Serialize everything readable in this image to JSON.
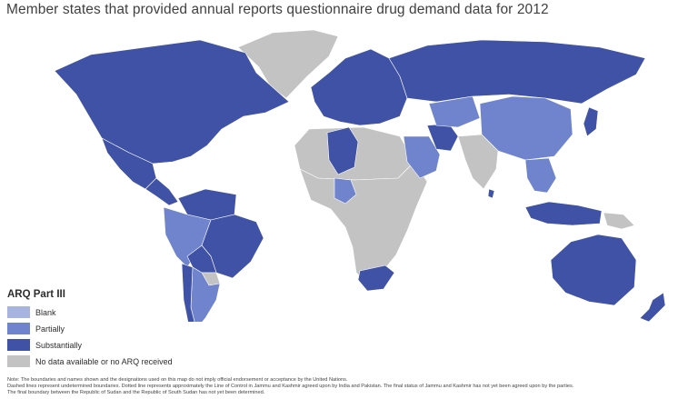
{
  "title": "Member states that provided annual reports questionnaire drug demand data for 2012",
  "colors": {
    "blank": "#a8b4e0",
    "partially": "#6f84cc",
    "substantially": "#3f52a6",
    "no_data": "#c3c3c3",
    "borders": "#ffffff"
  },
  "legend": {
    "title": "ARQ Part III",
    "items": [
      {
        "label": "Blank",
        "category": "blank"
      },
      {
        "label": "Partially",
        "category": "partially"
      },
      {
        "label": "Substantially",
        "category": "substantially"
      },
      {
        "label": "No data available or no ARQ received",
        "category": "no_data"
      }
    ]
  },
  "note": {
    "line1": "Note: The boundaries and names shown and the designations used on this map do not imply official endorsement or acceptance by the United Nations.",
    "line2": "Dashed lines represent undetermined boundaries. Dotted line represents approximately the Line of Control in Jammu and Kashmir agreed upon by India and Pakistan. The final status of Jammu and Kashmir has not yet been agreed upon by the parties.",
    "line3": "The final boundary between the Republic of Sudan and the Republic of South Sudan has not yet been determined."
  },
  "regions": [
    {
      "name": "North America (Canada, United States)",
      "category": "substantially"
    },
    {
      "name": "Greenland",
      "category": "no_data"
    },
    {
      "name": "Mexico",
      "category": "substantially"
    },
    {
      "name": "Central America",
      "category": "substantially"
    },
    {
      "name": "Northern South America",
      "category": "substantially"
    },
    {
      "name": "Brazil",
      "category": "substantially"
    },
    {
      "name": "Andean states",
      "category": "partially"
    },
    {
      "name": "Bolivia",
      "category": "substantially"
    },
    {
      "name": "Paraguay",
      "category": "no_data"
    },
    {
      "name": "Argentina",
      "category": "partially"
    },
    {
      "name": "Chile",
      "category": "substantially"
    },
    {
      "name": "Europe",
      "category": "substantially"
    },
    {
      "name": "Russian Federation",
      "category": "substantially"
    },
    {
      "name": "Northern Africa",
      "category": "no_data"
    },
    {
      "name": "Algeria",
      "category": "substantially"
    },
    {
      "name": "Sub-Saharan Africa",
      "category": "no_data"
    },
    {
      "name": "Nigeria",
      "category": "partially"
    },
    {
      "name": "South Africa",
      "category": "substantially"
    },
    {
      "name": "Arabian Peninsula",
      "category": "partially"
    },
    {
      "name": "Iran",
      "category": "substantially"
    },
    {
      "name": "Central Asia",
      "category": "partially"
    },
    {
      "name": "China",
      "category": "partially"
    },
    {
      "name": "Japan",
      "category": "substantially"
    },
    {
      "name": "South Asia",
      "category": "no_data"
    },
    {
      "name": "Sri Lanka",
      "category": "substantially"
    },
    {
      "name": "South-East Asia",
      "category": "partially"
    },
    {
      "name": "Indonesia",
      "category": "substantially"
    },
    {
      "name": "Papua New Guinea",
      "category": "no_data"
    },
    {
      "name": "Australia",
      "category": "substantially"
    },
    {
      "name": "New Zealand",
      "category": "substantially"
    }
  ]
}
